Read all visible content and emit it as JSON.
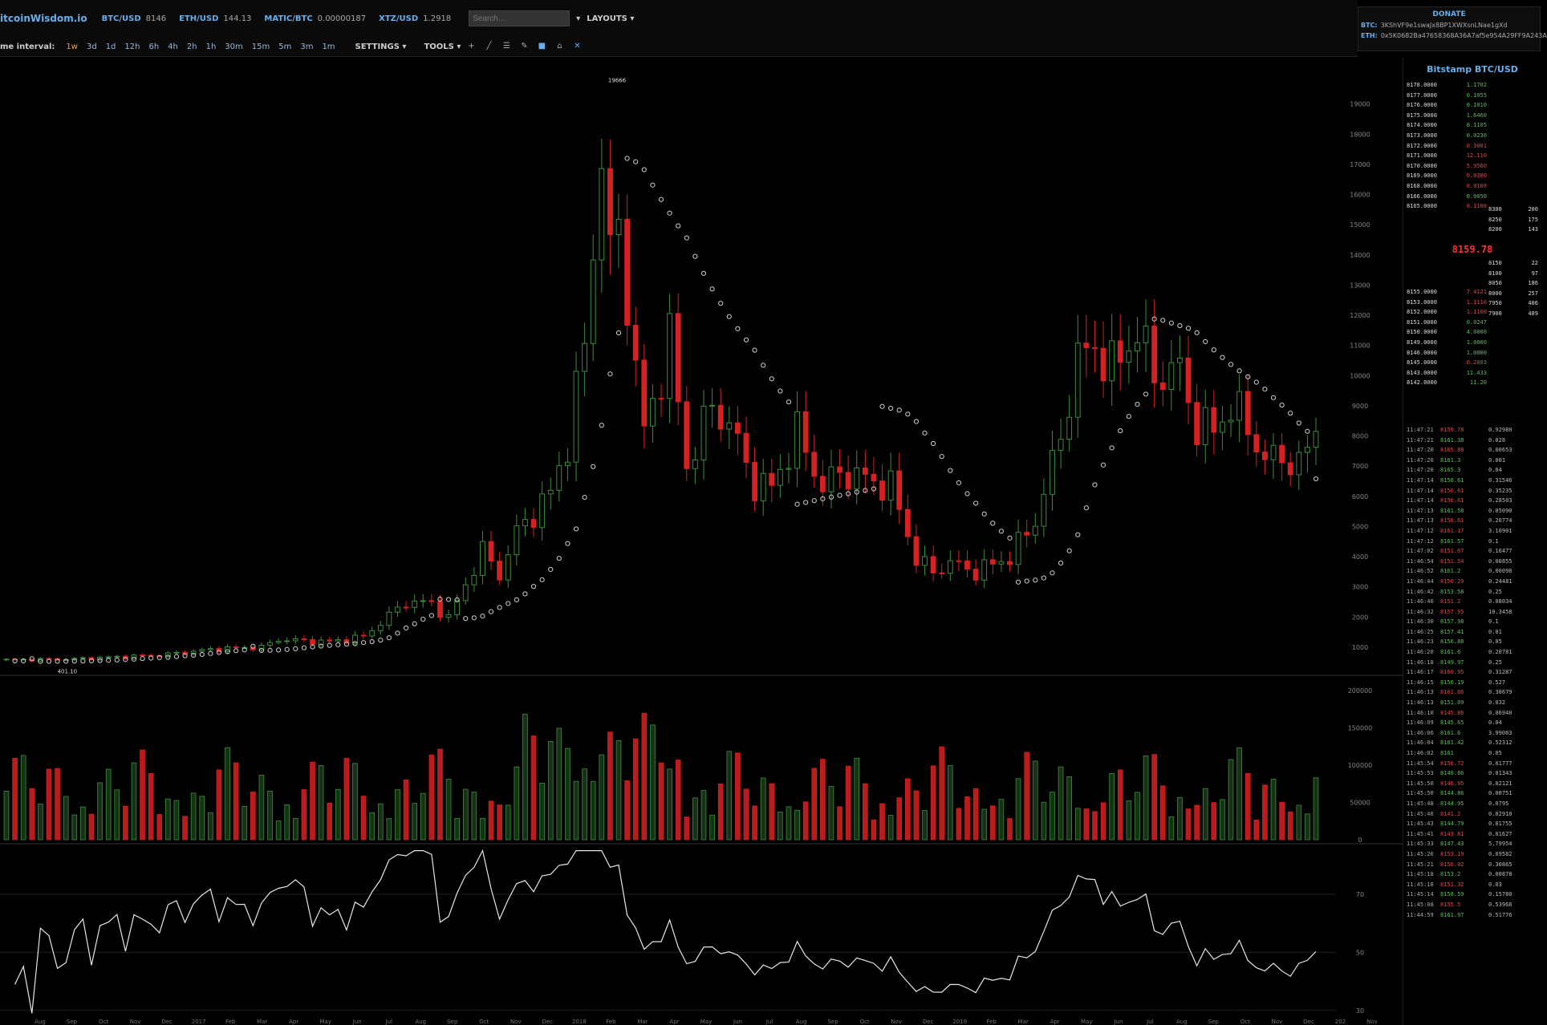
{
  "header": {
    "brand": "itcoinWisdom.io",
    "tickers": [
      {
        "symbol": "BTC/USD",
        "value": "8146"
      },
      {
        "symbol": "ETH/USD",
        "value": "144.13"
      },
      {
        "symbol": "MATIC/BTC",
        "value": "0.00000187"
      },
      {
        "symbol": "XTZ/USD",
        "value": "1.2918"
      }
    ],
    "search_placeholder": "Search...",
    "layouts_label": "LAYOUTS"
  },
  "toolbar": {
    "interval_label": "me interval:",
    "timeframes": [
      "1w",
      "3d",
      "1d",
      "12h",
      "6h",
      "4h",
      "2h",
      "1h",
      "30m",
      "15m",
      "5m",
      "3m",
      "1m"
    ],
    "active_timeframe": "1w",
    "settings_label": "SETTINGS",
    "tools_label": "TOOLS"
  },
  "donate": {
    "title": "DONATE",
    "btc_label": "BTC:",
    "btc_address": "3KShVF9e1swaJx8BP1XWXsnLNae1gXd",
    "eth_label": "ETH:",
    "eth_address": "0x5K0682Ba47658368A36A7af5e954A29FF9A243A"
  },
  "sidebar": {
    "title": "Bitstamp BTC/USD",
    "last_price": "8159.78",
    "asks": [
      {
        "price": "8178.0000",
        "size": "1.1702",
        "side": "g"
      },
      {
        "price": "8177.0000",
        "size": "0.1055",
        "side": "g"
      },
      {
        "price": "8176.0000",
        "size": "0.1010",
        "side": "g"
      },
      {
        "price": "8175.0000",
        "size": "1.6460",
        "side": "g"
      },
      {
        "price": "8174.0000",
        "size": "0.1105",
        "side": "g"
      },
      {
        "price": "8173.0000",
        "size": "0.0230",
        "side": "g"
      },
      {
        "price": "8172.0000",
        "size": "0.3001",
        "side": "r"
      },
      {
        "price": "8171.0000",
        "size": "12.110",
        "side": "r"
      },
      {
        "price": "8170.0000",
        "size": "5.9560",
        "side": "r"
      },
      {
        "price": "8169.0000",
        "size": "0.0300",
        "side": "r"
      },
      {
        "price": "8168.0000",
        "size": "0.0100",
        "side": "r"
      },
      {
        "price": "8166.0000",
        "size": "0.0050",
        "side": "g"
      },
      {
        "price": "8165.0000",
        "size": "0.1100",
        "side": "r"
      }
    ],
    "bids": [
      {
        "price": "8155.0000",
        "size": "7.4121",
        "side": "r"
      },
      {
        "price": "8153.0000",
        "size": "1.1110",
        "side": "r"
      },
      {
        "price": "8152.0000",
        "size": "1.1100",
        "side": "r"
      },
      {
        "price": "8151.0000",
        "size": "0.0247",
        "side": "g"
      },
      {
        "price": "8150.0000",
        "size": "4.0000",
        "side": "g"
      },
      {
        "price": "8149.0000",
        "size": "1.0000",
        "side": "g"
      },
      {
        "price": "8146.0000",
        "size": "1.0000",
        "side": "g"
      },
      {
        "price": "8145.0000",
        "size": "0.2003",
        "side": "r"
      },
      {
        "price": "8143.0000",
        "size": "11.433",
        "side": "g"
      },
      {
        "price": "8142.0000",
        "size": "11.20",
        "side": "g"
      }
    ],
    "depth_top": [
      {
        "p": "8300",
        "v": "200"
      },
      {
        "p": "8250",
        "v": "175"
      },
      {
        "p": "8200",
        "v": "143"
      }
    ],
    "depth_bottom": [
      {
        "p": "8150",
        "v": "22"
      },
      {
        "p": "8100",
        "v": "97"
      },
      {
        "p": "8050",
        "v": "186"
      },
      {
        "p": "8000",
        "v": "257"
      },
      {
        "p": "7950",
        "v": "406"
      },
      {
        "p": "7900",
        "v": "489"
      }
    ],
    "trades": [
      {
        "t": "11:47:21",
        "p": "8159.78",
        "side": "r",
        "a": "0.92980"
      },
      {
        "t": "11:47:21",
        "p": "8161.38",
        "side": "g",
        "a": "0.028"
      },
      {
        "t": "11:47:20",
        "p": "8165.88",
        "side": "r",
        "a": "0.00653"
      },
      {
        "t": "11:47:20",
        "p": "8161.3",
        "side": "g",
        "a": "0.001"
      },
      {
        "t": "11:47:20",
        "p": "8165.3",
        "side": "g",
        "a": "0.04"
      },
      {
        "t": "11:47:14",
        "p": "8156.61",
        "side": "g",
        "a": "0.31546"
      },
      {
        "t": "11:47:14",
        "p": "8156.61",
        "side": "r",
        "a": "0.35235"
      },
      {
        "t": "11:47:14",
        "p": "8156.61",
        "side": "r",
        "a": "0.28503"
      },
      {
        "t": "11:47:13",
        "p": "8161.58",
        "side": "g",
        "a": "0.05090"
      },
      {
        "t": "11:47:13",
        "p": "8156.61",
        "side": "r",
        "a": "0.20774"
      },
      {
        "t": "11:47:12",
        "p": "8161.17",
        "side": "r",
        "a": "3.10901"
      },
      {
        "t": "11:47:12",
        "p": "8161.57",
        "side": "g",
        "a": "0.1"
      },
      {
        "t": "11:47:02",
        "p": "8151.67",
        "side": "r",
        "a": "0.16477"
      },
      {
        "t": "11:46:54",
        "p": "8151.54",
        "side": "r",
        "a": "0.00855"
      },
      {
        "t": "11:46:52",
        "p": "8161.2",
        "side": "g",
        "a": "0.00098"
      },
      {
        "t": "11:46:44",
        "p": "8150.29",
        "side": "r",
        "a": "0.24481"
      },
      {
        "t": "11:46:42",
        "p": "8153.58",
        "side": "g",
        "a": "0.25"
      },
      {
        "t": "11:46:40",
        "p": "8151.2",
        "side": "r",
        "a": "0.08034"
      },
      {
        "t": "11:46:32",
        "p": "8157.95",
        "side": "r",
        "a": "10.3458"
      },
      {
        "t": "11:46:30",
        "p": "8157.98",
        "side": "g",
        "a": "0.1"
      },
      {
        "t": "11:46:25",
        "p": "8157.41",
        "side": "g",
        "a": "0.01"
      },
      {
        "t": "11:46:23",
        "p": "8156.88",
        "side": "g",
        "a": "0.05"
      },
      {
        "t": "11:46:20",
        "p": "8161.6",
        "side": "g",
        "a": "0.20781"
      },
      {
        "t": "11:46:18",
        "p": "8149.97",
        "side": "g",
        "a": "0.25"
      },
      {
        "t": "11:46:17",
        "p": "8160.95",
        "side": "r",
        "a": "0.31287"
      },
      {
        "t": "11:46:15",
        "p": "8156.19",
        "side": "g",
        "a": "0.527"
      },
      {
        "t": "11:46:13",
        "p": "8161.86",
        "side": "r",
        "a": "0.30679"
      },
      {
        "t": "11:46:13",
        "p": "8151.09",
        "side": "g",
        "a": "0.032"
      },
      {
        "t": "11:46:10",
        "p": "8145.86",
        "side": "r",
        "a": "0.06940"
      },
      {
        "t": "11:46:09",
        "p": "8145.65",
        "side": "g",
        "a": "0.04"
      },
      {
        "t": "11:46:06",
        "p": "8161.6",
        "side": "g",
        "a": "3.99083"
      },
      {
        "t": "11:46:04",
        "p": "8161.42",
        "side": "g",
        "a": "0.52312"
      },
      {
        "t": "11:46:02",
        "p": "8161",
        "side": "g",
        "a": "0.05"
      },
      {
        "t": "11:45:54",
        "p": "8156.72",
        "side": "r",
        "a": "0.01777"
      },
      {
        "t": "11:45:53",
        "p": "8146.86",
        "side": "g",
        "a": "0.01343"
      },
      {
        "t": "11:45:50",
        "p": "8146.95",
        "side": "r",
        "a": "0.02121"
      },
      {
        "t": "11:45:50",
        "p": "8144.86",
        "side": "g",
        "a": "0.00751"
      },
      {
        "t": "11:45:48",
        "p": "8144.95",
        "side": "g",
        "a": "0.0795"
      },
      {
        "t": "11:45:46",
        "p": "8141.2",
        "side": "r",
        "a": "0.02910"
      },
      {
        "t": "11:45:43",
        "p": "8144.79",
        "side": "g",
        "a": "0.01755"
      },
      {
        "t": "11:45:41",
        "p": "8143.81",
        "side": "r",
        "a": "0.01627"
      },
      {
        "t": "11:45:33",
        "p": "8147.43",
        "side": "g",
        "a": "5.79954"
      },
      {
        "t": "11:45:26",
        "p": "8153.19",
        "side": "r",
        "a": "0.09582"
      },
      {
        "t": "11:45:21",
        "p": "8156.02",
        "side": "r",
        "a": "0.30865"
      },
      {
        "t": "11:45:18",
        "p": "8153.2",
        "side": "g",
        "a": "0.00878"
      },
      {
        "t": "11:45:18",
        "p": "8151.32",
        "side": "r",
        "a": "0.03"
      },
      {
        "t": "11:45:14",
        "p": "8158.59",
        "side": "g",
        "a": "0.15780"
      },
      {
        "t": "11:45:08",
        "p": "8155.5",
        "side": "r",
        "a": "0.53968"
      },
      {
        "t": "11:44:59",
        "p": "8161.97",
        "side": "g",
        "a": "0.51776"
      }
    ]
  },
  "chart_data": {
    "type": "candlestick",
    "interval": "1w",
    "price_axis": {
      "ticks": [
        1000,
        2000,
        3000,
        4000,
        5000,
        6000,
        7000,
        8000,
        9000,
        10000,
        11000,
        12000,
        13000,
        14000,
        15000,
        16000,
        17000,
        18000,
        19000
      ],
      "range": [
        200,
        20000
      ]
    },
    "volume_axis": {
      "ticks": [
        0,
        50000,
        100000,
        150000,
        200000
      ],
      "range": [
        0,
        215000
      ]
    },
    "rsi_axis": {
      "ticks": [
        30,
        50,
        70
      ],
      "range": [
        28,
        86
      ]
    },
    "x_labels": [
      "Aug",
      "Sep",
      "Oct",
      "Nov",
      "Dec",
      "2017",
      "Feb",
      "Mar",
      "Apr",
      "May",
      "Jun",
      "Jul",
      "Aug",
      "Sep",
      "Oct",
      "Nov",
      "Dec",
      "2018",
      "Feb",
      "Mar",
      "Apr",
      "May",
      "Jun",
      "Jul",
      "Aug",
      "Sep",
      "Oct",
      "Nov",
      "Dec",
      "2019",
      "Feb",
      "Mar",
      "Apr",
      "May",
      "Jun",
      "Jul",
      "Aug",
      "Sep",
      "Oct",
      "Nov",
      "Dec",
      "202",
      "Nov"
    ],
    "annotations": [
      {
        "label": "19666",
        "type": "high"
      },
      {
        "label": "401.10",
        "type": "low"
      }
    ],
    "close_anchors": [
      [
        0,
        580
      ],
      [
        8,
        610
      ],
      [
        18,
        740
      ],
      [
        25,
        950
      ],
      [
        30,
        1000
      ],
      [
        32,
        1250
      ],
      [
        35,
        1210
      ],
      [
        38,
        1180
      ],
      [
        42,
        1350
      ],
      [
        47,
        2500
      ],
      [
        50,
        2450
      ],
      [
        52,
        1950
      ],
      [
        56,
        4200
      ],
      [
        58,
        3400
      ],
      [
        60,
        4800
      ],
      [
        64,
        6100
      ],
      [
        66,
        7800
      ],
      [
        68,
        11000
      ],
      [
        70,
        17500
      ],
      [
        71,
        13800
      ],
      [
        72,
        15000
      ],
      [
        74,
        10200
      ],
      [
        75,
        8100
      ],
      [
        78,
        11200
      ],
      [
        80,
        7000
      ],
      [
        83,
        9000
      ],
      [
        85,
        8400
      ],
      [
        88,
        6400
      ],
      [
        90,
        6300
      ],
      [
        93,
        8100
      ],
      [
        96,
        6300
      ],
      [
        98,
        6800
      ],
      [
        102,
        6500
      ],
      [
        104,
        6300
      ],
      [
        105,
        5600
      ],
      [
        107,
        3900
      ],
      [
        109,
        3500
      ],
      [
        111,
        3800
      ],
      [
        114,
        3500
      ],
      [
        118,
        4000
      ],
      [
        121,
        5200
      ],
      [
        124,
        8000
      ],
      [
        126,
        10500
      ],
      [
        128,
        11000
      ],
      [
        130,
        10200
      ],
      [
        133,
        11500
      ],
      [
        135,
        10000
      ],
      [
        138,
        10200
      ],
      [
        140,
        8300
      ],
      [
        142,
        8200
      ],
      [
        144,
        9000
      ],
      [
        146,
        8300
      ],
      [
        148,
        7200
      ],
      [
        150,
        7300
      ],
      [
        152,
        7000
      ],
      [
        154,
        8150
      ]
    ]
  }
}
